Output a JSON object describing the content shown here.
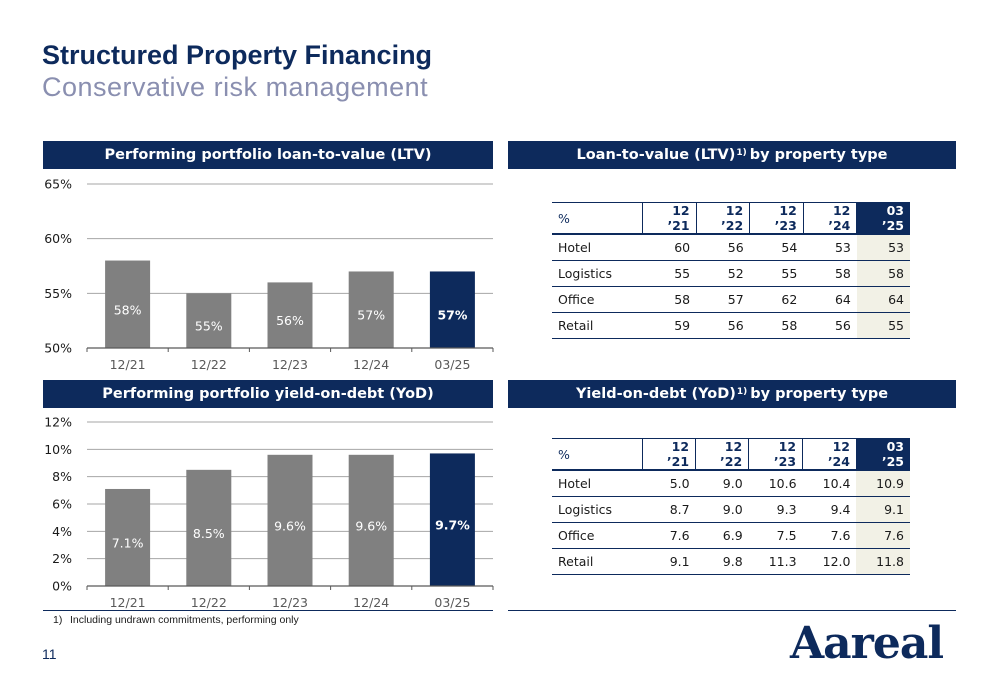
{
  "header": {
    "title": "Structured Property Financing",
    "subtitle": "Conservative risk management"
  },
  "panels": {
    "ltv_chart_title": "Performing portfolio loan-to-value (LTV)",
    "yod_chart_title": "Performing portfolio yield-on-debt (YoD)",
    "ltv_table_title_main": "Loan-to-value (LTV)",
    "ltv_table_title_sup": "1)",
    "ltv_table_title_rest": "by property type",
    "yod_table_title_main": "Yield-on-debt (YoD)",
    "yod_table_title_sup": "1)",
    "yod_table_title_rest": "by property type"
  },
  "chart_data": [
    {
      "type": "bar",
      "title": "Performing portfolio loan-to-value (LTV)",
      "categories": [
        "12/21",
        "12/22",
        "12/23",
        "12/24",
        "03/25"
      ],
      "values": [
        58,
        55,
        56,
        57,
        57
      ],
      "labels": [
        "58%",
        "55%",
        "56%",
        "57%",
        "57%"
      ],
      "ylim": [
        50,
        65
      ],
      "yticks": [
        50,
        55,
        60,
        65
      ],
      "ytick_labels": [
        "50%",
        "55%",
        "60%",
        "65%"
      ],
      "grid": true,
      "colors": {
        "bar": "#808080",
        "highlight": "#0d2a5c"
      },
      "highlight_index": 4
    },
    {
      "type": "bar",
      "title": "Performing portfolio yield-on-debt (YoD)",
      "categories": [
        "12/21",
        "12/22",
        "12/23",
        "12/24",
        "03/25"
      ],
      "values": [
        7.1,
        8.5,
        9.6,
        9.6,
        9.7
      ],
      "labels": [
        "7.1%",
        "8.5%",
        "9.6%",
        "9.6%",
        "9.7%"
      ],
      "ylim": [
        0,
        12
      ],
      "yticks": [
        0,
        2,
        4,
        6,
        8,
        10,
        12
      ],
      "ytick_labels": [
        "0%",
        "2%",
        "4%",
        "6%",
        "8%",
        "10%",
        "12%"
      ],
      "grid": true,
      "colors": {
        "bar": "#808080",
        "highlight": "#0d2a5c"
      },
      "highlight_index": 4
    }
  ],
  "ltv_table": {
    "columns": [
      "%",
      "12 ’21",
      "12 ’22",
      "12 ’23",
      "12 ’24",
      "03 ’25"
    ],
    "rows": [
      [
        "Hotel",
        "60",
        "56",
        "54",
        "53",
        "53"
      ],
      [
        "Logistics",
        "55",
        "52",
        "55",
        "58",
        "58"
      ],
      [
        "Office",
        "58",
        "57",
        "62",
        "64",
        "64"
      ],
      [
        "Retail",
        "59",
        "56",
        "58",
        "56",
        "55"
      ]
    ]
  },
  "yod_table": {
    "columns": [
      "%",
      "12 ’21",
      "12 ’22",
      "12 ’23",
      "12 ’24",
      "03 ’25"
    ],
    "rows": [
      [
        "Hotel",
        "5.0",
        "9.0",
        "10.6",
        "10.4",
        "10.9"
      ],
      [
        "Logistics",
        "8.7",
        "9.0",
        "9.3",
        "9.4",
        "9.1"
      ],
      [
        "Office",
        "7.6",
        "6.9",
        "7.5",
        "7.6",
        "7.6"
      ],
      [
        "Retail",
        "9.1",
        "9.8",
        "11.3",
        "12.0",
        "11.8"
      ]
    ]
  },
  "footer": {
    "footnote_number": "1)",
    "footnote_text": "Including undrawn commitments, performing only",
    "page_number": "11",
    "logo_text": "Aareal"
  }
}
